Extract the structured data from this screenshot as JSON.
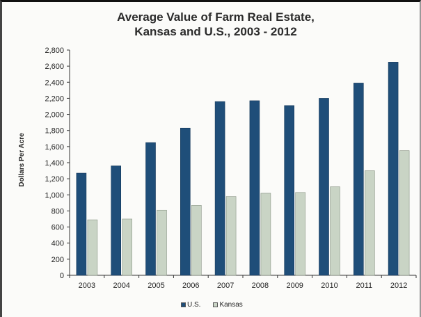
{
  "chart_data": {
    "type": "bar",
    "title": "Average Value of Farm Real Estate,",
    "subtitle": "Kansas and U.S., 2003 - 2012",
    "xlabel": "",
    "ylabel": "Dollars Per Acre",
    "categories": [
      "2003",
      "2004",
      "2005",
      "2006",
      "2007",
      "2008",
      "2009",
      "2010",
      "2011",
      "2012"
    ],
    "series": [
      {
        "name": "U.S.",
        "color": "#1f4e79",
        "values": [
          1270,
          1360,
          1650,
          1830,
          2160,
          2170,
          2110,
          2200,
          2390,
          2650
        ]
      },
      {
        "name": "Kansas",
        "color": "#c9d4c5",
        "values": [
          690,
          700,
          810,
          870,
          980,
          1020,
          1030,
          1100,
          1300,
          1550
        ]
      }
    ],
    "ylim": [
      0,
      2800
    ],
    "yticks": [
      "0",
      "200",
      "400",
      "600",
      "800",
      "1,000",
      "1,200",
      "1,400",
      "1,600",
      "1,800",
      "2,000",
      "2,200",
      "2,400",
      "2,600",
      "2,800"
    ],
    "grid": false,
    "legend_position": "bottom"
  }
}
